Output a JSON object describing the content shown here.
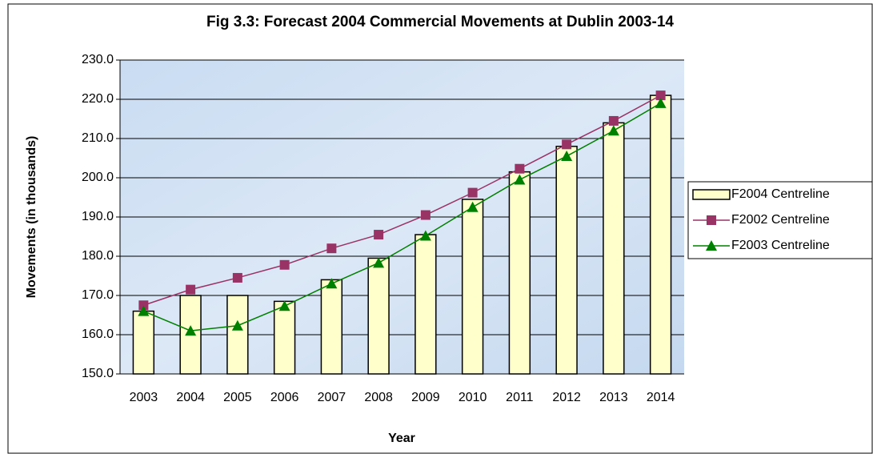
{
  "chart_data": {
    "type": "bar",
    "title": "Fig 3.3: Forecast 2004 Commercial Movements at Dublin 2003-14",
    "x_label": "Year",
    "y_label": "Movements (in thousands)",
    "categories": [
      "2003",
      "2004",
      "2005",
      "2006",
      "2007",
      "2008",
      "2009",
      "2010",
      "2011",
      "2012",
      "2013",
      "2014"
    ],
    "series": [
      {
        "name": "F2004 Centreline",
        "type": "bar",
        "color": "#ffffcc",
        "values": [
          166,
          170,
          170,
          168.5,
          174,
          179.5,
          185.5,
          194.5,
          201.5,
          208,
          214,
          221
        ]
      },
      {
        "name": "F2002 Centreline",
        "type": "line",
        "marker": "square",
        "color": "#993366",
        "values": [
          167.5,
          171.5,
          174.5,
          177.8,
          182,
          185.5,
          190.5,
          196.2,
          202.3,
          208.5,
          214.5,
          221
        ]
      },
      {
        "name": "F2003 Centreline",
        "type": "line",
        "marker": "triangle",
        "color": "#008000",
        "values": [
          166,
          161,
          162.3,
          167.3,
          173,
          178.3,
          185.2,
          192.5,
          199.5,
          205.5,
          212,
          219
        ]
      }
    ],
    "ylim": [
      150,
      230
    ],
    "yticks": [
      {
        "value": 150,
        "label": "150.0"
      },
      {
        "value": 160,
        "label": "160.0"
      },
      {
        "value": 170,
        "label": "170.0"
      },
      {
        "value": 180,
        "label": "180.0"
      },
      {
        "value": 190,
        "label": "190.0"
      },
      {
        "value": 200,
        "label": "200.0"
      },
      {
        "value": 210,
        "label": "210.0"
      },
      {
        "value": 220,
        "label": "220.0"
      },
      {
        "value": 230,
        "label": "230.0"
      }
    ],
    "grid": true,
    "legend": "right"
  }
}
